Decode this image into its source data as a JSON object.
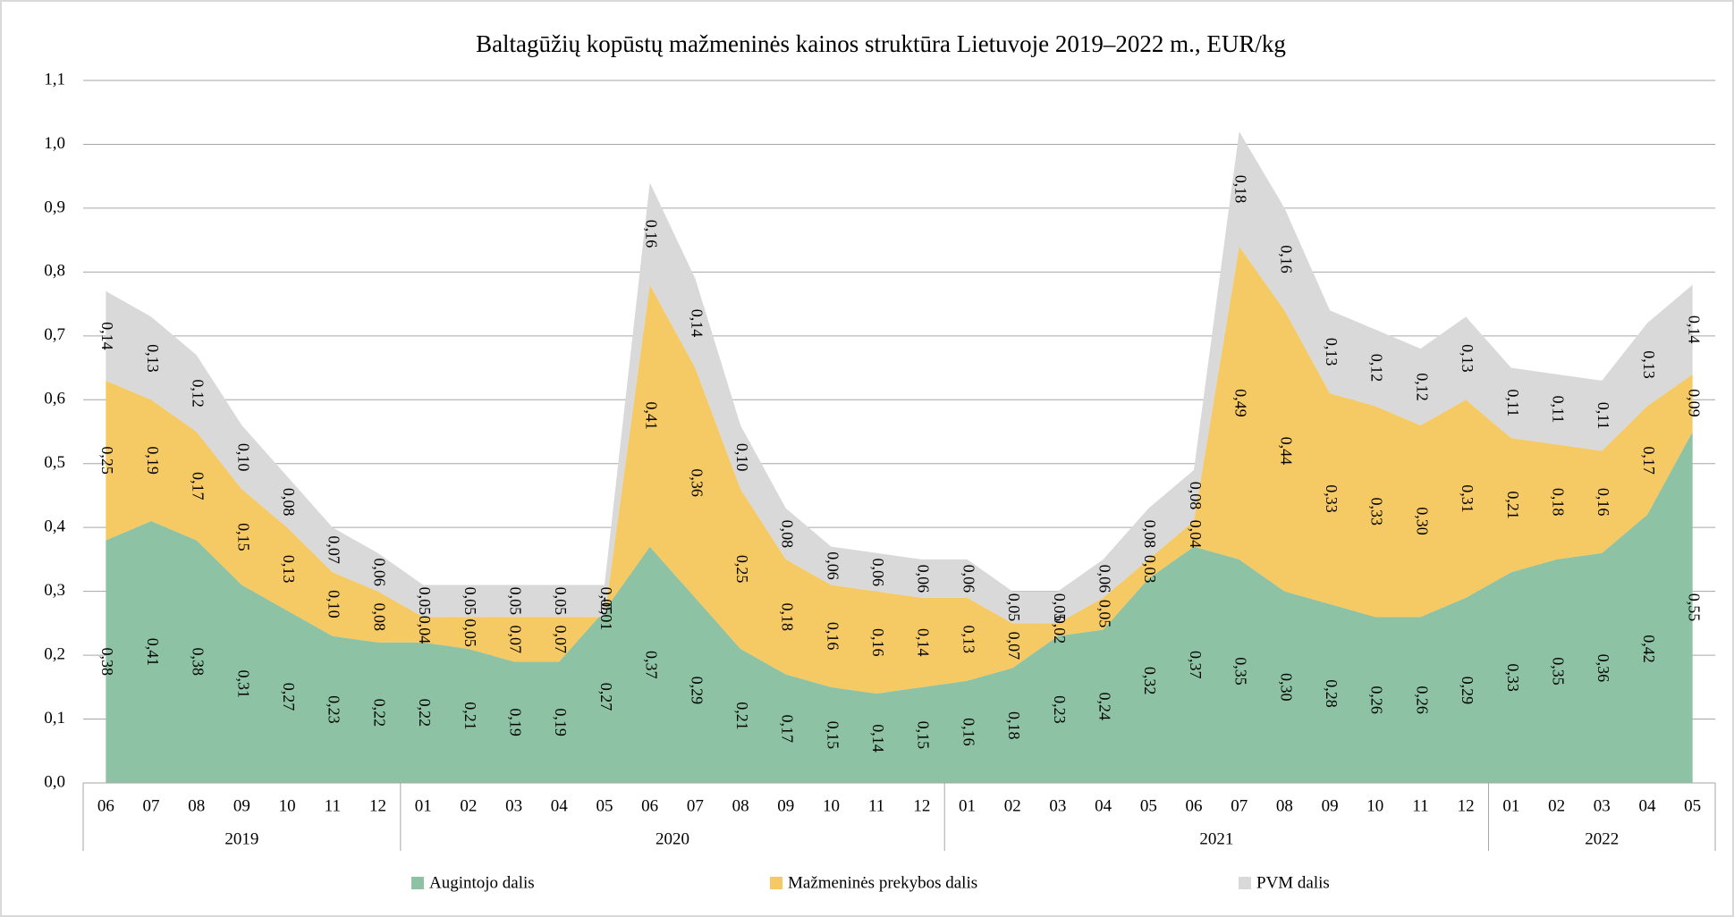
{
  "chart_data": {
    "type": "stacked_area",
    "title": "Baltagūžių kopūstų mažmeninės kainos struktūra Lietuvoje 2019–2022 m., EUR/kg",
    "categories": [
      "06",
      "07",
      "08",
      "09",
      "10",
      "11",
      "12",
      "01",
      "02",
      "03",
      "04",
      "05",
      "06",
      "07",
      "08",
      "09",
      "10",
      "11",
      "12",
      "01",
      "02",
      "03",
      "04",
      "05",
      "06",
      "07",
      "08",
      "09",
      "10",
      "11",
      "12",
      "01",
      "02",
      "03",
      "04",
      "05"
    ],
    "x_groups": [
      {
        "label": "2019",
        "span": 7
      },
      {
        "label": "2020",
        "span": 12
      },
      {
        "label": "2021",
        "span": 12
      },
      {
        "label": "2022",
        "span": 5
      }
    ],
    "series": [
      {
        "name": "Augintojo dalis",
        "color": "#8dc3a4",
        "values": [
          0.38,
          0.41,
          0.38,
          0.31,
          0.27,
          0.23,
          0.22,
          0.22,
          0.21,
          0.19,
          0.19,
          0.27,
          0.37,
          0.29,
          0.21,
          0.17,
          0.15,
          0.14,
          0.15,
          0.16,
          0.18,
          0.23,
          0.24,
          0.32,
          0.37,
          0.35,
          0.3,
          0.28,
          0.26,
          0.26,
          0.29,
          0.33,
          0.35,
          0.36,
          0.42,
          0.55
        ],
        "value_labels": [
          "0,38",
          "0,41",
          "0,38",
          "0,31",
          "0,27",
          "0,23",
          "0,22",
          "0,22",
          "0,21",
          "0,19",
          "0,19",
          "0,27",
          "0,37",
          "0,29",
          "0,21",
          "0,17",
          "0,15",
          "0,14",
          "0,15",
          "0,16",
          "0,18",
          "0,23",
          "0,24",
          "0,32",
          "0,37",
          "0,35",
          "0,30",
          "0,28",
          "0,26",
          "0,26",
          "0,29",
          "0,33",
          "0,35",
          "0,36",
          "0,42",
          "0,55"
        ]
      },
      {
        "name": "Mažmeninės prekybos dalis",
        "color": "#f5c964",
        "values": [
          0.25,
          0.19,
          0.17,
          0.15,
          0.13,
          0.1,
          0.08,
          0.04,
          0.05,
          0.07,
          0.07,
          -0.01,
          0.41,
          0.36,
          0.25,
          0.18,
          0.16,
          0.16,
          0.14,
          0.13,
          0.07,
          0.02,
          0.05,
          0.03,
          0.04,
          0.49,
          0.44,
          0.33,
          0.33,
          0.3,
          0.31,
          0.21,
          0.18,
          0.16,
          0.17,
          0.09
        ],
        "value_labels": [
          "0,25",
          "0,19",
          "0,17",
          "0,15",
          "0,13",
          "0,10",
          "0,08",
          "0,04",
          "0,05",
          "0,07",
          "0,07",
          "-0,01",
          "0,41",
          "0,36",
          "0,25",
          "0,18",
          "0,16",
          "0,16",
          "0,14",
          "0,13",
          "0,07",
          "0,02",
          "0,05",
          "0,03",
          "0,04",
          "0,49",
          "0,44",
          "0,33",
          "0,33",
          "0,30",
          "0,31",
          "0,21",
          "0,18",
          "0,16",
          "0,17",
          "0,09"
        ]
      },
      {
        "name": "PVM dalis",
        "color": "#d9d9d9",
        "values": [
          0.14,
          0.13,
          0.12,
          0.1,
          0.08,
          0.07,
          0.06,
          0.05,
          0.05,
          0.05,
          0.05,
          0.05,
          0.16,
          0.14,
          0.1,
          0.08,
          0.06,
          0.06,
          0.06,
          0.06,
          0.05,
          0.05,
          0.06,
          0.08,
          0.08,
          0.18,
          0.16,
          0.13,
          0.12,
          0.12,
          0.13,
          0.11,
          0.11,
          0.11,
          0.13,
          0.14
        ],
        "value_labels": [
          "0,14",
          "0,13",
          "0,12",
          "0,10",
          "0,08",
          "0,07",
          "0,06",
          "0,05",
          "0,05",
          "0,05",
          "0,05",
          "0,05",
          "0,16",
          "0,14",
          "0,10",
          "0,08",
          "0,06",
          "0,06",
          "0,06",
          "0,06",
          "0,05",
          "0,05",
          "0,06",
          "0,08",
          "0,08",
          "0,18",
          "0,16",
          "0,13",
          "0,12",
          "0,12",
          "0,13",
          "0,11",
          "0,11",
          "0,11",
          "0,13",
          "0,14"
        ]
      }
    ],
    "ylim": [
      0,
      1.1
    ],
    "yticks": [
      {
        "value": 0,
        "label": "0,0"
      },
      {
        "value": 0.1,
        "label": "0,1"
      },
      {
        "value": 0.2,
        "label": "0,2"
      },
      {
        "value": 0.3,
        "label": "0,3"
      },
      {
        "value": 0.4,
        "label": "0,4"
      },
      {
        "value": 0.5,
        "label": "0,5"
      },
      {
        "value": 0.6,
        "label": "0,6"
      },
      {
        "value": 0.7,
        "label": "0,7"
      },
      {
        "value": 0.8,
        "label": "0,8"
      },
      {
        "value": 0.9,
        "label": "0,9"
      },
      {
        "value": 1.0,
        "label": "1,0"
      },
      {
        "value": 1.1,
        "label": "1,1"
      }
    ],
    "grid": true,
    "legend": "bottom"
  }
}
